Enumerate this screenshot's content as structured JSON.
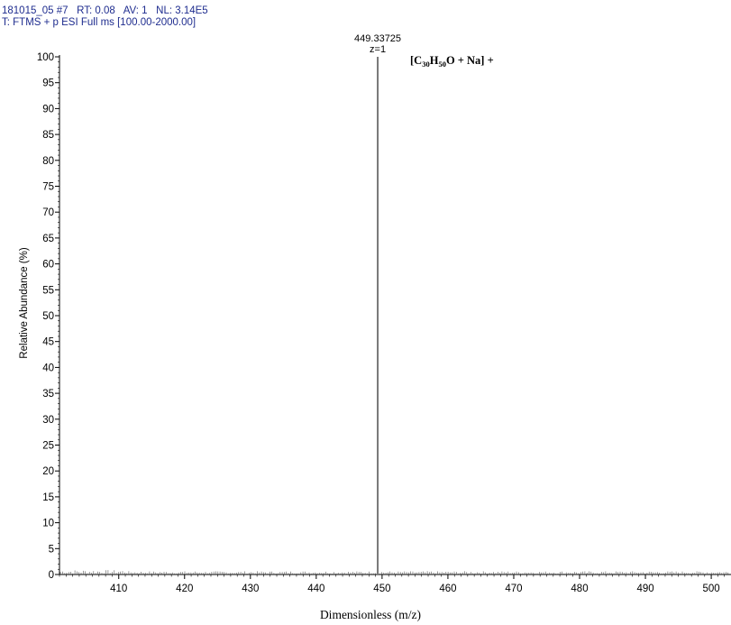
{
  "header": {
    "line1": "181015_05 #7   RT: 0.08   AV: 1   NL: 3.14E5",
    "line2": "T: FTMS + p ESI Full ms [100.00-2000.00]"
  },
  "colors": {
    "header_text": "#1f2d8f",
    "peak": "#777777",
    "axis": "#000000"
  },
  "chart_data": {
    "type": "line",
    "xlabel": "Dimensionless (m/z)",
    "ylabel": "Relative Abundance  (%)",
    "xlim": [
      401,
      503
    ],
    "ylim": [
      0,
      100
    ],
    "xticks": [
      410,
      420,
      430,
      440,
      450,
      460,
      470,
      480,
      490,
      500
    ],
    "yticks": [
      0,
      5,
      10,
      15,
      20,
      25,
      30,
      35,
      40,
      45,
      50,
      55,
      60,
      65,
      70,
      75,
      80,
      85,
      90,
      95,
      100
    ],
    "peaks": [
      {
        "mz": 449.33725,
        "abundance": 100,
        "label": "449.33725",
        "charge": "z=1"
      }
    ],
    "annotation": {
      "prefix": "[C",
      "sub1": "30",
      "mid": "H",
      "sub2": "50",
      "suffix": "O + Na] +"
    }
  }
}
